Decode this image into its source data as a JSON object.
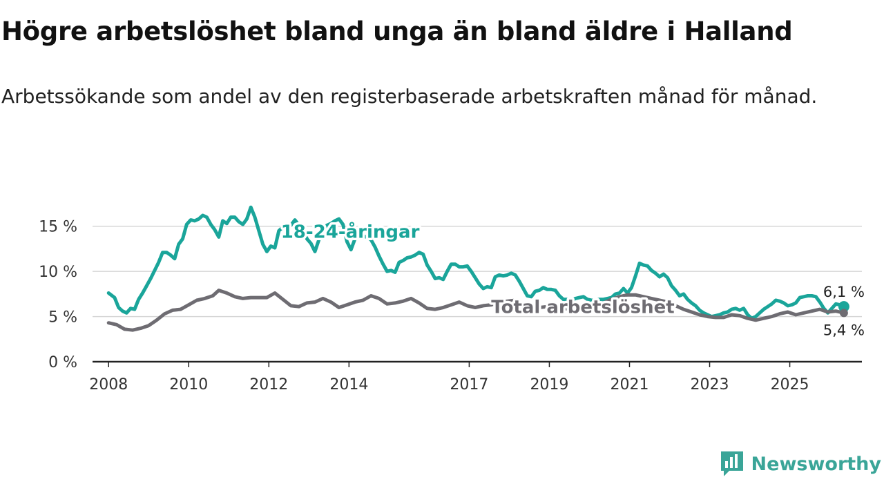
{
  "header": {
    "title": "Högre arbetslöshet bland unga än bland äldre i Halland",
    "subtitle": "Arbetssökande som andel av den registerbaserade arbetskraften månad för månad."
  },
  "brand": {
    "name": "Newsworthy",
    "icon": "newsworthy-logo-icon",
    "color": "#3aa598"
  },
  "chart_data": {
    "type": "line",
    "title": "Högre arbetslöshet bland unga än bland äldre i Halland",
    "subtitle": "Arbetssökande som andel av den registerbaserade arbetskraften månad för månad.",
    "xlabel": "",
    "ylabel": "",
    "x_range": [
      2007.6,
      2026.8
    ],
    "ylim": [
      0,
      17.5
    ],
    "y_ticks": [
      {
        "value": 0,
        "label": "0 %"
      },
      {
        "value": 5,
        "label": "5 %"
      },
      {
        "value": 10,
        "label": "10 %"
      },
      {
        "value": 15,
        "label": "15 %"
      }
    ],
    "x_ticks": [
      {
        "value": 2008,
        "label": "2008"
      },
      {
        "value": 2010,
        "label": "2010"
      },
      {
        "value": 2012,
        "label": "2012"
      },
      {
        "value": 2014,
        "label": "2014"
      },
      {
        "value": 2017,
        "label": "2017"
      },
      {
        "value": 2019,
        "label": "2019"
      },
      {
        "value": 2021,
        "label": "2021"
      },
      {
        "value": 2023,
        "label": "2023"
      },
      {
        "value": 2025,
        "label": "2025"
      }
    ],
    "grid": true,
    "series": [
      {
        "name": "18-24-åringar",
        "color": "#1aa59a",
        "label_at": [
          2012.3,
          13.7
        ],
        "end_label": "6,1 %",
        "points": [
          [
            2008.0,
            7.6
          ],
          [
            2008.15,
            7.1
          ],
          [
            2008.25,
            6.0
          ],
          [
            2008.35,
            5.6
          ],
          [
            2008.45,
            5.4
          ],
          [
            2008.55,
            5.9
          ],
          [
            2008.65,
            5.8
          ],
          [
            2008.75,
            6.9
          ],
          [
            2008.85,
            7.6
          ],
          [
            2008.95,
            8.4
          ],
          [
            2009.05,
            9.2
          ],
          [
            2009.15,
            10.1
          ],
          [
            2009.25,
            11.0
          ],
          [
            2009.35,
            12.1
          ],
          [
            2009.45,
            12.1
          ],
          [
            2009.55,
            11.8
          ],
          [
            2009.65,
            11.4
          ],
          [
            2009.75,
            13.0
          ],
          [
            2009.85,
            13.6
          ],
          [
            2009.95,
            15.2
          ],
          [
            2010.05,
            15.7
          ],
          [
            2010.15,
            15.6
          ],
          [
            2010.25,
            15.8
          ],
          [
            2010.35,
            16.2
          ],
          [
            2010.45,
            16.0
          ],
          [
            2010.55,
            15.2
          ],
          [
            2010.65,
            14.6
          ],
          [
            2010.75,
            13.8
          ],
          [
            2010.85,
            15.6
          ],
          [
            2010.95,
            15.3
          ],
          [
            2011.05,
            16.0
          ],
          [
            2011.15,
            16.0
          ],
          [
            2011.25,
            15.5
          ],
          [
            2011.35,
            15.2
          ],
          [
            2011.45,
            15.8
          ],
          [
            2011.55,
            17.1
          ],
          [
            2011.65,
            16.0
          ],
          [
            2011.75,
            14.5
          ],
          [
            2011.85,
            13.0
          ],
          [
            2011.95,
            12.2
          ],
          [
            2012.05,
            12.8
          ],
          [
            2012.15,
            12.6
          ],
          [
            2012.25,
            14.5
          ],
          [
            2012.35,
            14.9
          ],
          [
            2012.45,
            14.8
          ],
          [
            2012.55,
            15.1
          ],
          [
            2012.65,
            15.7
          ],
          [
            2012.75,
            15.1
          ],
          [
            2012.85,
            15.0
          ],
          [
            2012.95,
            13.6
          ],
          [
            2013.05,
            13.1
          ],
          [
            2013.15,
            12.2
          ],
          [
            2013.25,
            13.5
          ],
          [
            2013.35,
            14.6
          ],
          [
            2013.45,
            15.1
          ],
          [
            2013.55,
            15.3
          ],
          [
            2013.65,
            15.6
          ],
          [
            2013.75,
            15.8
          ],
          [
            2013.85,
            15.2
          ],
          [
            2013.95,
            13.3
          ],
          [
            2014.05,
            12.4
          ],
          [
            2014.15,
            13.6
          ],
          [
            2014.25,
            14.0
          ],
          [
            2014.35,
            13.9
          ],
          [
            2014.45,
            13.8
          ],
          [
            2014.55,
            13.5
          ],
          [
            2014.65,
            12.7
          ],
          [
            2014.75,
            11.7
          ],
          [
            2014.85,
            10.8
          ],
          [
            2014.95,
            10.0
          ],
          [
            2015.05,
            10.1
          ],
          [
            2015.15,
            9.9
          ],
          [
            2015.25,
            11.0
          ],
          [
            2015.35,
            11.2
          ],
          [
            2015.45,
            11.5
          ],
          [
            2015.55,
            11.6
          ],
          [
            2015.65,
            11.8
          ],
          [
            2015.75,
            12.1
          ],
          [
            2015.85,
            11.9
          ],
          [
            2015.95,
            10.7
          ],
          [
            2016.05,
            10.0
          ],
          [
            2016.15,
            9.2
          ],
          [
            2016.25,
            9.3
          ],
          [
            2016.35,
            9.1
          ],
          [
            2016.45,
            10.0
          ],
          [
            2016.55,
            10.8
          ],
          [
            2016.65,
            10.8
          ],
          [
            2016.75,
            10.5
          ],
          [
            2016.85,
            10.5
          ],
          [
            2016.95,
            10.6
          ],
          [
            2017.05,
            10.0
          ],
          [
            2017.15,
            9.3
          ],
          [
            2017.25,
            8.6
          ],
          [
            2017.35,
            8.1
          ],
          [
            2017.45,
            8.3
          ],
          [
            2017.55,
            8.2
          ],
          [
            2017.65,
            9.4
          ],
          [
            2017.75,
            9.6
          ],
          [
            2017.85,
            9.5
          ],
          [
            2017.95,
            9.6
          ],
          [
            2018.05,
            9.8
          ],
          [
            2018.15,
            9.6
          ],
          [
            2018.25,
            8.9
          ],
          [
            2018.35,
            8.1
          ],
          [
            2018.45,
            7.3
          ],
          [
            2018.55,
            7.2
          ],
          [
            2018.65,
            7.8
          ],
          [
            2018.75,
            7.9
          ],
          [
            2018.85,
            8.2
          ],
          [
            2018.95,
            8.0
          ],
          [
            2019.05,
            8.0
          ],
          [
            2019.15,
            7.9
          ],
          [
            2019.25,
            7.3
          ],
          [
            2019.35,
            6.9
          ],
          [
            2019.45,
            6.9
          ],
          [
            2019.55,
            6.8
          ],
          [
            2019.65,
            7.0
          ],
          [
            2019.75,
            7.1
          ],
          [
            2019.85,
            7.2
          ],
          [
            2019.95,
            6.9
          ],
          [
            2020.05,
            6.8
          ],
          [
            2020.15,
            6.8
          ],
          [
            2020.25,
            6.9
          ],
          [
            2020.35,
            6.9
          ],
          [
            2020.45,
            7.0
          ],
          [
            2020.55,
            7.1
          ],
          [
            2020.65,
            7.5
          ],
          [
            2020.75,
            7.6
          ],
          [
            2020.85,
            8.1
          ],
          [
            2020.95,
            7.6
          ],
          [
            2021.05,
            8.2
          ],
          [
            2021.15,
            9.5
          ],
          [
            2021.25,
            10.9
          ],
          [
            2021.35,
            10.7
          ],
          [
            2021.45,
            10.6
          ],
          [
            2021.55,
            10.1
          ],
          [
            2021.65,
            9.8
          ],
          [
            2021.75,
            9.4
          ],
          [
            2021.85,
            9.7
          ],
          [
            2021.95,
            9.3
          ],
          [
            2022.05,
            8.4
          ],
          [
            2022.15,
            7.9
          ],
          [
            2022.25,
            7.3
          ],
          [
            2022.35,
            7.5
          ],
          [
            2022.45,
            6.9
          ],
          [
            2022.55,
            6.5
          ],
          [
            2022.65,
            6.2
          ],
          [
            2022.75,
            5.7
          ],
          [
            2022.85,
            5.4
          ],
          [
            2022.95,
            5.2
          ],
          [
            2023.05,
            5.0
          ],
          [
            2023.15,
            5.1
          ],
          [
            2023.25,
            5.2
          ],
          [
            2023.35,
            5.4
          ],
          [
            2023.45,
            5.5
          ],
          [
            2023.55,
            5.8
          ],
          [
            2023.65,
            5.9
          ],
          [
            2023.75,
            5.7
          ],
          [
            2023.85,
            5.9
          ],
          [
            2023.95,
            5.2
          ],
          [
            2024.05,
            4.8
          ],
          [
            2024.15,
            5.0
          ],
          [
            2024.25,
            5.4
          ],
          [
            2024.35,
            5.8
          ],
          [
            2024.45,
            6.1
          ],
          [
            2024.55,
            6.4
          ],
          [
            2024.65,
            6.8
          ],
          [
            2024.75,
            6.7
          ],
          [
            2024.85,
            6.5
          ],
          [
            2024.95,
            6.2
          ],
          [
            2025.05,
            6.3
          ],
          [
            2025.15,
            6.5
          ],
          [
            2025.25,
            7.1
          ],
          [
            2025.35,
            7.2
          ],
          [
            2025.45,
            7.3
          ],
          [
            2025.55,
            7.3
          ],
          [
            2025.65,
            7.2
          ],
          [
            2025.75,
            6.6
          ],
          [
            2025.85,
            5.9
          ],
          [
            2025.95,
            5.4
          ],
          [
            2026.05,
            5.9
          ],
          [
            2026.15,
            6.4
          ],
          [
            2026.25,
            6.3
          ],
          [
            2026.35,
            6.1
          ]
        ]
      },
      {
        "name": "Total arbetslöshet",
        "color": "#6e6c72",
        "label_at": [
          2017.55,
          5.4
        ],
        "end_label": "5,4 %",
        "points": [
          [
            2008.0,
            4.3
          ],
          [
            2008.2,
            4.1
          ],
          [
            2008.4,
            3.6
          ],
          [
            2008.6,
            3.5
          ],
          [
            2008.8,
            3.7
          ],
          [
            2009.0,
            4.0
          ],
          [
            2009.2,
            4.6
          ],
          [
            2009.4,
            5.3
          ],
          [
            2009.6,
            5.7
          ],
          [
            2009.8,
            5.8
          ],
          [
            2010.0,
            6.3
          ],
          [
            2010.2,
            6.8
          ],
          [
            2010.4,
            7.0
          ],
          [
            2010.6,
            7.3
          ],
          [
            2010.75,
            7.9
          ],
          [
            2010.95,
            7.6
          ],
          [
            2011.15,
            7.2
          ],
          [
            2011.35,
            7.0
          ],
          [
            2011.55,
            7.1
          ],
          [
            2011.75,
            7.1
          ],
          [
            2011.95,
            7.1
          ],
          [
            2012.15,
            7.6
          ],
          [
            2012.35,
            6.9
          ],
          [
            2012.55,
            6.2
          ],
          [
            2012.75,
            6.1
          ],
          [
            2012.95,
            6.5
          ],
          [
            2013.15,
            6.6
          ],
          [
            2013.35,
            7.0
          ],
          [
            2013.55,
            6.6
          ],
          [
            2013.75,
            6.0
          ],
          [
            2013.95,
            6.3
          ],
          [
            2014.15,
            6.6
          ],
          [
            2014.35,
            6.8
          ],
          [
            2014.55,
            7.3
          ],
          [
            2014.75,
            7.0
          ],
          [
            2014.95,
            6.4
          ],
          [
            2015.15,
            6.5
          ],
          [
            2015.35,
            6.7
          ],
          [
            2015.55,
            7.0
          ],
          [
            2015.75,
            6.5
          ],
          [
            2015.95,
            5.9
          ],
          [
            2016.15,
            5.8
          ],
          [
            2016.35,
            6.0
          ],
          [
            2016.55,
            6.3
          ],
          [
            2016.75,
            6.6
          ],
          [
            2016.95,
            6.2
          ],
          [
            2017.15,
            6.0
          ],
          [
            2017.35,
            6.2
          ],
          [
            2017.55,
            6.3
          ],
          [
            2017.75,
            6.6
          ],
          [
            2017.95,
            6.7
          ],
          [
            2018.15,
            6.8
          ],
          [
            2018.35,
            6.2
          ],
          [
            2018.55,
            5.9
          ],
          [
            2018.75,
            6.0
          ],
          [
            2018.95,
            6.1
          ],
          [
            2019.15,
            6.1
          ],
          [
            2019.35,
            5.9
          ],
          [
            2019.55,
            5.8
          ],
          [
            2019.75,
            5.9
          ],
          [
            2019.95,
            6.0
          ],
          [
            2020.15,
            6.2
          ],
          [
            2020.35,
            6.5
          ],
          [
            2020.55,
            6.9
          ],
          [
            2020.75,
            7.2
          ],
          [
            2020.95,
            7.4
          ],
          [
            2021.15,
            7.4
          ],
          [
            2021.35,
            7.2
          ],
          [
            2021.55,
            7.0
          ],
          [
            2021.75,
            6.8
          ],
          [
            2021.95,
            6.6
          ],
          [
            2022.15,
            6.2
          ],
          [
            2022.35,
            5.8
          ],
          [
            2022.55,
            5.5
          ],
          [
            2022.75,
            5.2
          ],
          [
            2022.95,
            5.0
          ],
          [
            2023.15,
            4.9
          ],
          [
            2023.35,
            4.9
          ],
          [
            2023.55,
            5.2
          ],
          [
            2023.75,
            5.1
          ],
          [
            2023.95,
            4.8
          ],
          [
            2024.15,
            4.6
          ],
          [
            2024.35,
            4.8
          ],
          [
            2024.55,
            5.0
          ],
          [
            2024.75,
            5.3
          ],
          [
            2024.95,
            5.5
          ],
          [
            2025.15,
            5.2
          ],
          [
            2025.35,
            5.4
          ],
          [
            2025.55,
            5.6
          ],
          [
            2025.75,
            5.8
          ],
          [
            2025.95,
            5.5
          ],
          [
            2026.15,
            5.6
          ],
          [
            2026.35,
            5.4
          ]
        ]
      }
    ]
  }
}
